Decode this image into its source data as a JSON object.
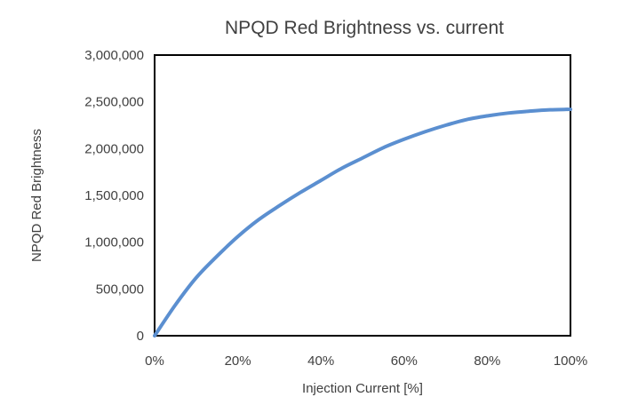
{
  "chart_data": {
    "type": "line",
    "title": "NPQD Red Brightness vs. current",
    "xlabel": "Injection Current [%]",
    "ylabel": "NPQD Red Brightness",
    "xlim": [
      0,
      100
    ],
    "ylim": [
      0,
      3000000
    ],
    "x_ticks": [
      "0%",
      "20%",
      "40%",
      "60%",
      "80%",
      "100%"
    ],
    "y_ticks": [
      "0",
      "500,000",
      "1,000,000",
      "1,500,000",
      "2,000,000",
      "2,500,000",
      "3,000,000"
    ],
    "grid": false,
    "legend": "none",
    "series": [
      {
        "color": "#5B8FD0",
        "x": [
          0,
          5,
          10,
          15,
          20,
          25,
          30,
          35,
          40,
          45,
          50,
          55,
          60,
          65,
          70,
          75,
          80,
          85,
          90,
          95,
          100
        ],
        "y": [
          0,
          330000,
          620000,
          850000,
          1060000,
          1240000,
          1390000,
          1530000,
          1660000,
          1790000,
          1900000,
          2010000,
          2100000,
          2180000,
          2250000,
          2310000,
          2350000,
          2380000,
          2400000,
          2415000,
          2420000
        ]
      }
    ]
  }
}
